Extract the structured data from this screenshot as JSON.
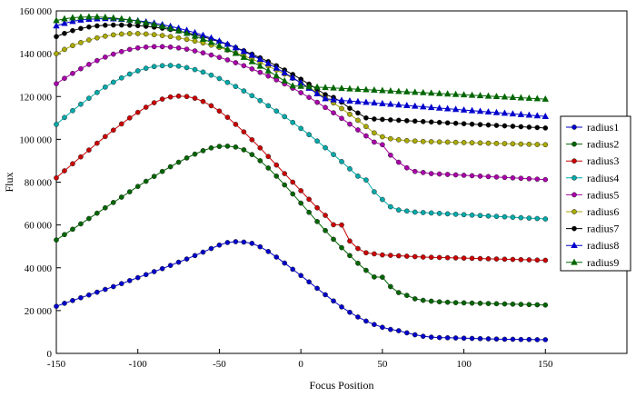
{
  "chart_data": {
    "type": "line",
    "xlabel": "Focus Position",
    "ylabel": "Flux",
    "xlim": [
      -150,
      200
    ],
    "ylim": [
      0,
      160000
    ],
    "xticks": [
      -150,
      -100,
      -50,
      0,
      50,
      100,
      150
    ],
    "yticks": [
      0,
      20000,
      40000,
      60000,
      80000,
      100000,
      120000,
      140000,
      160000
    ],
    "xtick_labels": [
      "-150",
      "-100",
      "-50",
      "0",
      "50",
      "100",
      "150"
    ],
    "ytick_labels": [
      "0",
      "20 000",
      "40 000",
      "60 000",
      "80 000",
      "100 000",
      "120 000",
      "140 000",
      "160 000"
    ],
    "grid": false,
    "legend_position": "right",
    "x": [
      -150,
      -145,
      -140,
      -135,
      -130,
      -125,
      -120,
      -115,
      -110,
      -105,
      -100,
      -95,
      -90,
      -85,
      -80,
      -75,
      -70,
      -65,
      -60,
      -55,
      -50,
      -45,
      -40,
      -35,
      -30,
      -25,
      -20,
      -15,
      -10,
      -5,
      0,
      5,
      10,
      15,
      20,
      25,
      30,
      35,
      40,
      45,
      50,
      55,
      60,
      65,
      70,
      75,
      80,
      85,
      90,
      95,
      100,
      105,
      110,
      115,
      120,
      125,
      130,
      135,
      140,
      145,
      150
    ],
    "series": [
      {
        "name": "radius1",
        "color": "#0000cc",
        "marker": "circle",
        "values": [
          22000,
          23400,
          24700,
          26000,
          27300,
          28600,
          29900,
          31200,
          32600,
          34000,
          35400,
          36800,
          38200,
          39600,
          41100,
          42600,
          44100,
          45700,
          47300,
          49000,
          50600,
          51800,
          52200,
          52000,
          51400,
          49800,
          47600,
          45000,
          42200,
          39300,
          36400,
          33400,
          30400,
          27400,
          24500,
          21700,
          19200,
          17000,
          15100,
          13500,
          12200,
          11200,
          10600,
          9600,
          8700,
          8000,
          7600,
          7400,
          7300,
          7200,
          7100,
          7000,
          6900,
          6800,
          6700,
          6600,
          6600,
          6500,
          6500,
          6400,
          6400
        ]
      },
      {
        "name": "radius2",
        "color": "#006600",
        "marker": "circle",
        "values": [
          53000,
          55500,
          58000,
          60500,
          63000,
          65500,
          68000,
          70500,
          73000,
          75500,
          78000,
          80400,
          82700,
          85000,
          87200,
          89300,
          91300,
          93100,
          94700,
          96000,
          96700,
          96800,
          96400,
          95100,
          92900,
          90000,
          86600,
          82800,
          78700,
          74500,
          70200,
          65900,
          61600,
          57400,
          53300,
          49400,
          45700,
          42100,
          38800,
          35700,
          35600,
          31200,
          28400,
          27100,
          25500,
          24800,
          24400,
          24100,
          23900,
          23700,
          23600,
          23500,
          23400,
          23300,
          23200,
          23100,
          23000,
          22900,
          22800,
          22700,
          22600
        ]
      },
      {
        "name": "radius3",
        "color": "#cc0000",
        "marker": "circle",
        "values": [
          82000,
          85300,
          88600,
          91800,
          95000,
          98200,
          101300,
          104300,
          107200,
          110000,
          112600,
          115000,
          117100,
          118800,
          119800,
          120200,
          120000,
          119200,
          117700,
          115700,
          113200,
          110300,
          107000,
          103500,
          99800,
          96000,
          92000,
          88000,
          84000,
          80000,
          76000,
          72000,
          68000,
          64500,
          60100,
          60000,
          52500,
          49000,
          47000,
          46500,
          46000,
          45800,
          45600,
          45400,
          45200,
          45000,
          44900,
          44800,
          44700,
          44600,
          44500,
          44400,
          44300,
          44200,
          44100,
          44000,
          43900,
          43800,
          43700,
          43600,
          43500
        ]
      },
      {
        "name": "radius4",
        "color": "#00aaaa",
        "marker": "circle",
        "values": [
          107000,
          110200,
          113400,
          116400,
          119200,
          121900,
          124400,
          126700,
          128700,
          130500,
          132000,
          133200,
          134000,
          134400,
          134500,
          134200,
          133500,
          132600,
          131400,
          130000,
          128400,
          126600,
          124700,
          122600,
          120400,
          118100,
          115700,
          113200,
          110600,
          107900,
          105100,
          102200,
          99200,
          96100,
          92900,
          89600,
          86200,
          82800,
          81000,
          75500,
          71900,
          68500,
          67000,
          66500,
          66000,
          65800,
          65600,
          65400,
          65200,
          65000,
          64800,
          64600,
          64400,
          64200,
          64000,
          63800,
          63600,
          63400,
          63200,
          63000,
          62800
        ]
      },
      {
        "name": "radius5",
        "color": "#aa00aa",
        "marker": "circle",
        "values": [
          126000,
          128500,
          130800,
          133000,
          135000,
          136800,
          138400,
          139800,
          141000,
          142000,
          142700,
          143100,
          143300,
          143300,
          143100,
          142700,
          142100,
          141300,
          140400,
          139400,
          138300,
          137100,
          135800,
          134400,
          132900,
          131300,
          129600,
          127800,
          125900,
          123900,
          121800,
          119600,
          117300,
          114900,
          112400,
          109800,
          107100,
          104400,
          101600,
          98700,
          97500,
          92600,
          89300,
          86700,
          85000,
          84500,
          84000,
          83800,
          83600,
          83400,
          83200,
          83000,
          82800,
          82600,
          82400,
          82200,
          82000,
          81800,
          81600,
          81400,
          81200
        ]
      },
      {
        "name": "radius6",
        "color": "#aaaa00",
        "marker": "circle",
        "values": [
          140000,
          142000,
          143800,
          145200,
          146400,
          147400,
          148200,
          148800,
          149200,
          149400,
          149400,
          149200,
          148900,
          148500,
          148000,
          147400,
          146700,
          145900,
          145000,
          144000,
          142900,
          141700,
          140400,
          139000,
          137500,
          135900,
          134200,
          132400,
          130500,
          128500,
          126400,
          124200,
          121900,
          119500,
          117000,
          114400,
          111700,
          108900,
          106000,
          103000,
          101200,
          100300,
          99800,
          99400,
          99200,
          99000,
          98900,
          98800,
          98700,
          98600,
          98500,
          98400,
          98300,
          98200,
          98100,
          98000,
          97900,
          97800,
          97700,
          97600,
          97500
        ]
      },
      {
        "name": "radius7",
        "color": "#000000",
        "marker": "circle",
        "values": [
          148000,
          149500,
          150800,
          151800,
          152500,
          153000,
          153300,
          153400,
          153400,
          153300,
          153100,
          152800,
          152400,
          151900,
          151300,
          150600,
          149800,
          148900,
          147900,
          146800,
          145600,
          144300,
          142900,
          141400,
          139800,
          138100,
          136300,
          134400,
          132400,
          130300,
          128100,
          125800,
          123400,
          120900,
          119600,
          117400,
          114500,
          112300,
          110000,
          109500,
          109300,
          109100,
          108900,
          108700,
          108500,
          108300,
          108100,
          107900,
          107700,
          107500,
          107300,
          107100,
          106900,
          106700,
          106500,
          106300,
          106100,
          105900,
          105700,
          105500,
          105300
        ]
      },
      {
        "name": "radius8",
        "color": "#0000cc",
        "marker": "triangle",
        "values": [
          153000,
          154200,
          155100,
          155700,
          156100,
          156300,
          156400,
          156300,
          156100,
          155800,
          155400,
          154900,
          154300,
          153600,
          152800,
          151900,
          150900,
          149800,
          148600,
          147300,
          145900,
          144400,
          142800,
          141100,
          139300,
          137400,
          135400,
          133300,
          131100,
          128800,
          126400,
          123900,
          121300,
          119000,
          118500,
          118200,
          117900,
          117600,
          117300,
          117000,
          116700,
          116400,
          116100,
          115800,
          115500,
          115200,
          114900,
          114600,
          114300,
          114000,
          113700,
          113400,
          113100,
          112800,
          112500,
          112200,
          111900,
          111600,
          111300,
          111000,
          110700
        ]
      },
      {
        "name": "radius9",
        "color": "#006600",
        "marker": "triangle",
        "values": [
          155500,
          156300,
          156800,
          157100,
          157200,
          157200,
          157000,
          156700,
          156300,
          155800,
          155200,
          154500,
          153700,
          152800,
          151800,
          150700,
          149500,
          148200,
          146800,
          145300,
          143700,
          142000,
          140200,
          138300,
          136300,
          134200,
          132000,
          129700,
          127300,
          125000,
          124800,
          124600,
          124400,
          124200,
          124000,
          123800,
          123600,
          123400,
          123200,
          123000,
          122800,
          122600,
          122400,
          122200,
          122000,
          121800,
          121600,
          121400,
          121200,
          121000,
          120800,
          120600,
          120400,
          120200,
          120000,
          119800,
          119600,
          119400,
          119200,
          119000,
          118800
        ]
      }
    ]
  }
}
